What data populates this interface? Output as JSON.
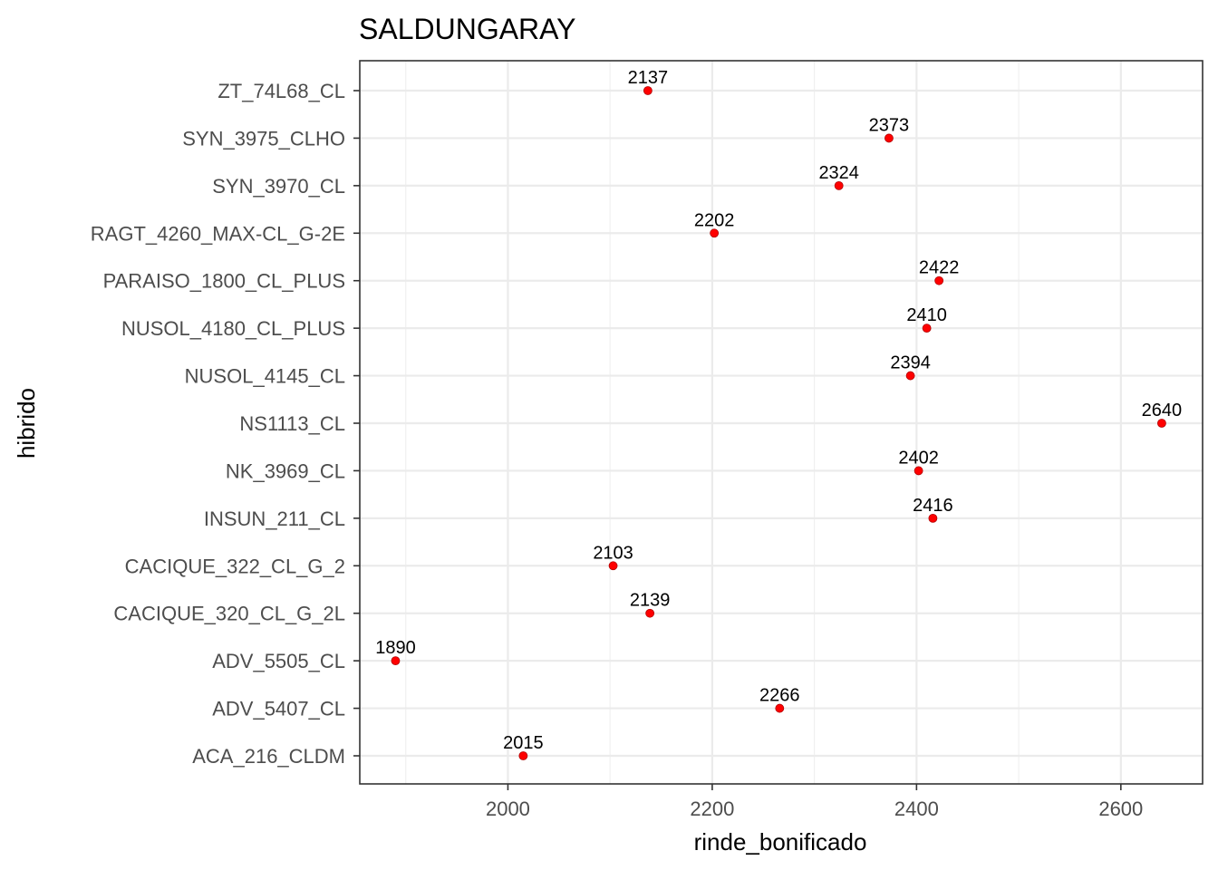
{
  "chart_data": {
    "type": "scatter",
    "title": "SALDUNGARAY",
    "xlabel": "rinde_bonificado",
    "ylabel": "hibrido",
    "xlim": [
      1855,
      2680
    ],
    "x_ticks": [
      2000,
      2200,
      2400,
      2600
    ],
    "grid": true,
    "categories": [
      "ACA_216_CLDM",
      "ADV_5407_CL",
      "ADV_5505_CL",
      "CACIQUE_320_CL_G_2L",
      "CACIQUE_322_CL_G_2",
      "INSUN_211_CL",
      "NK_3969_CL",
      "NS1113_CL",
      "NUSOL_4145_CL",
      "NUSOL_4180_CL_PLUS",
      "PARAISO_1800_CL_PLUS",
      "RAGT_4260_MAX-CL_G-2E",
      "SYN_3970_CL",
      "SYN_3975_CLHO",
      "ZT_74L68_CL"
    ],
    "values": [
      2015,
      2266,
      1890,
      2139,
      2103,
      2416,
      2402,
      2640,
      2394,
      2410,
      2422,
      2202,
      2324,
      2373,
      2137
    ],
    "point_color": "#ff0000"
  }
}
